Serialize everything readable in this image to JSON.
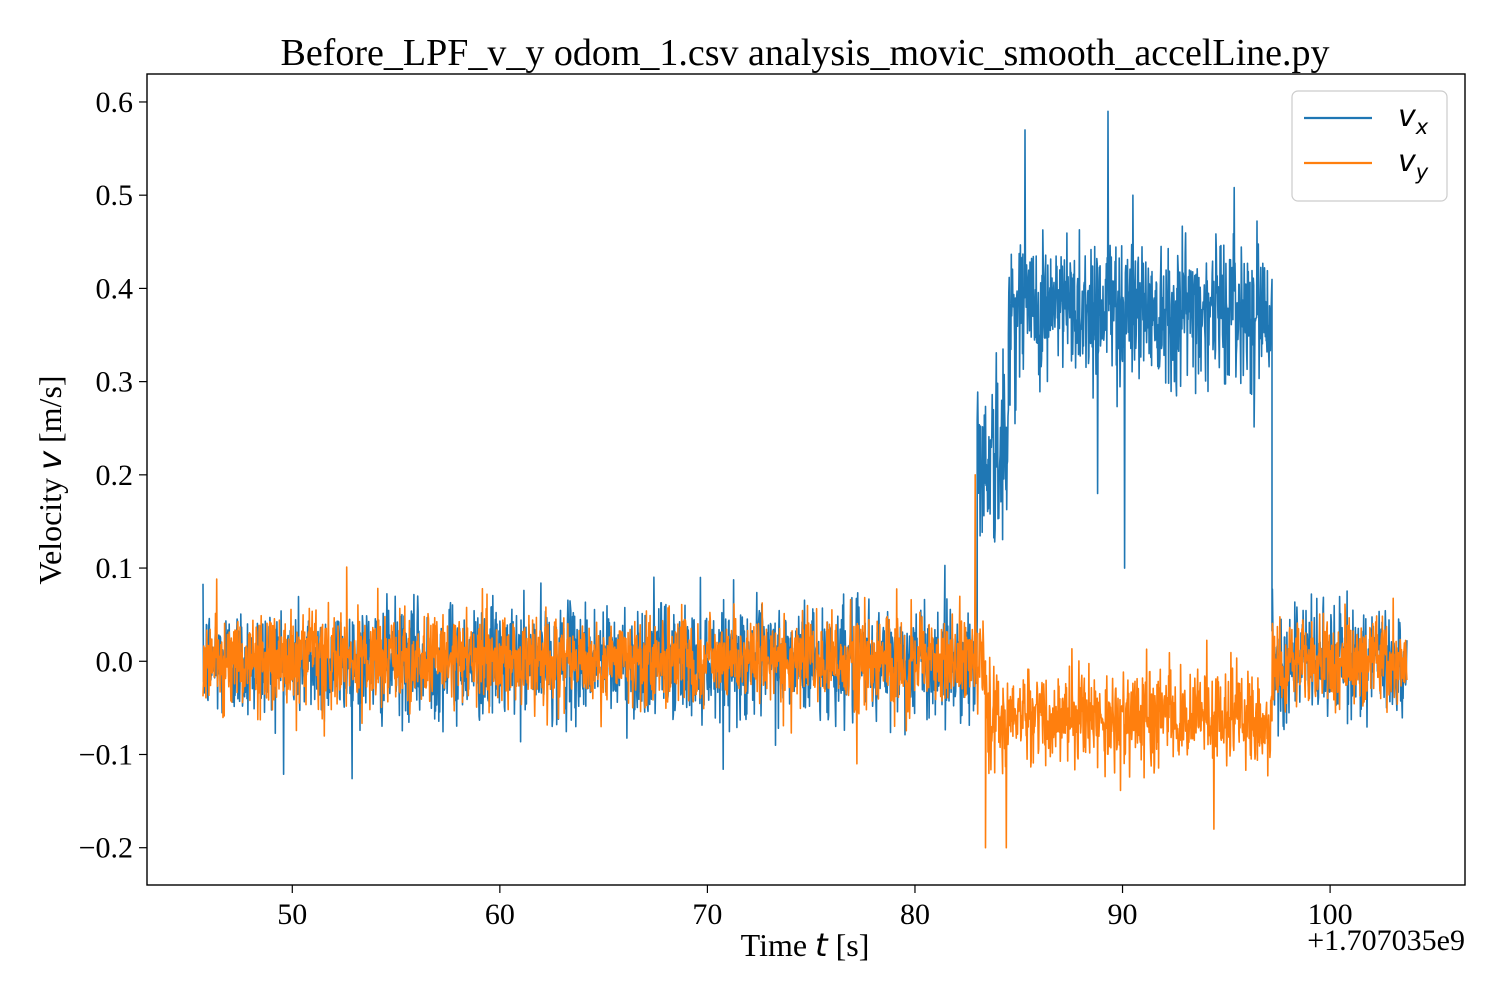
{
  "chart_data": {
    "type": "line",
    "title": "Before_LPF_v_y odom_1.csv analysis_movic_smooth_accelLine.py",
    "xlabel": {
      "text": "Time ",
      "symbol": "t",
      "unit": " [s]"
    },
    "ylabel": {
      "text": "Velocity ",
      "symbol": "v",
      "unit": " [m/s]"
    },
    "x_offset_label": "+1.707035e9",
    "xlim": [
      43,
      106.5
    ],
    "ylim": [
      -0.24,
      0.63
    ],
    "x_ticks": [
      50,
      60,
      70,
      80,
      90,
      100
    ],
    "y_ticks": [
      -0.2,
      -0.1,
      0.0,
      0.1,
      0.2,
      0.3,
      0.4,
      0.5,
      0.6
    ],
    "x_tick_labels": [
      "50",
      "60",
      "70",
      "80",
      "90",
      "100"
    ],
    "y_tick_labels": [
      "−0.2",
      "−0.1",
      "0.0",
      "0.1",
      "0.2",
      "0.3",
      "0.4",
      "0.5",
      "0.6"
    ],
    "grid": false,
    "legend_position": "top-right",
    "series": [
      {
        "name": "v",
        "name_sub": "x",
        "color": "#1f77b4",
        "segments": [
          {
            "x_start": 45.7,
            "x_end": 83.0,
            "mean": 0.0,
            "noise": 0.03
          },
          {
            "x_start": 83.0,
            "x_end": 84.5,
            "mean": 0.22,
            "noise": 0.05
          },
          {
            "x_start": 84.5,
            "x_end": 97.2,
            "mean": 0.38,
            "noise": 0.04
          },
          {
            "x_start": 97.2,
            "x_end": 103.7,
            "mean": 0.0,
            "noise": 0.03
          }
        ],
        "peaks": [
          [
            85.3,
            0.57
          ],
          [
            89.3,
            0.59
          ],
          [
            90.5,
            0.5
          ],
          [
            88.8,
            0.18
          ],
          [
            90.1,
            0.1
          ]
        ]
      },
      {
        "name": "v",
        "name_sub": "y",
        "color": "#ff7f0e",
        "segments": [
          {
            "x_start": 45.7,
            "x_end": 83.4,
            "mean": 0.0,
            "noise": 0.025
          },
          {
            "x_start": 83.4,
            "x_end": 97.2,
            "mean": -0.06,
            "noise": 0.025
          },
          {
            "x_start": 97.2,
            "x_end": 103.7,
            "mean": 0.0,
            "noise": 0.025
          }
        ],
        "peaks": [
          [
            83.4,
            -0.2
          ],
          [
            84.4,
            -0.2
          ],
          [
            82.9,
            0.2
          ],
          [
            94.4,
            -0.18
          ],
          [
            77.2,
            -0.11
          ]
        ]
      }
    ]
  }
}
